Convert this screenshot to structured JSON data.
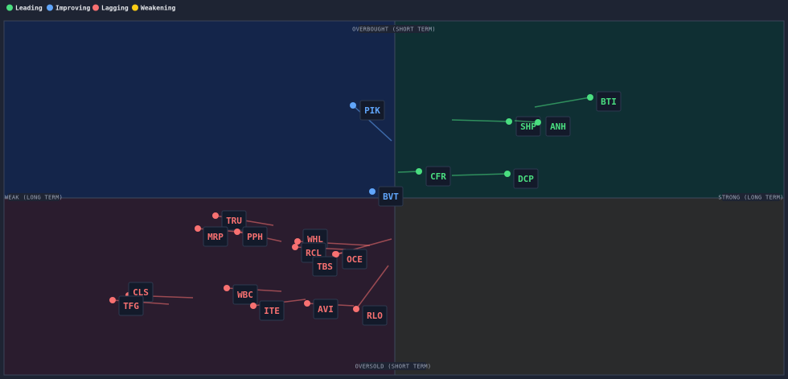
{
  "legend": [
    {
      "label": "Leading",
      "color": "#4ade80"
    },
    {
      "label": "Improving",
      "color": "#60a5fa"
    },
    {
      "label": "Lagging",
      "color": "#f87171"
    },
    {
      "label": "Weakening",
      "color": "#facc15"
    }
  ],
  "quadrant_labels": {
    "top": "OVERBOUGHT (SHORT TERM)",
    "bottom": "OVERSOLD (SHORT TERM)",
    "left": "WEAK (LONG TERM)",
    "right": "STRONG (LONG TERM)"
  },
  "tickers": [
    {
      "symbol": "PIK",
      "status": "Improving"
    },
    {
      "symbol": "BVT",
      "status": "Improving"
    },
    {
      "symbol": "BTI",
      "status": "Leading"
    },
    {
      "symbol": "SHP",
      "status": "Leading"
    },
    {
      "symbol": "ANH",
      "status": "Leading"
    },
    {
      "symbol": "CFR",
      "status": "Leading"
    },
    {
      "symbol": "DCP",
      "status": "Leading"
    },
    {
      "symbol": "TRU",
      "status": "Lagging"
    },
    {
      "symbol": "MRP",
      "status": "Lagging"
    },
    {
      "symbol": "PPH",
      "status": "Lagging"
    },
    {
      "symbol": "WHL",
      "status": "Lagging"
    },
    {
      "symbol": "RCL",
      "status": "Lagging"
    },
    {
      "symbol": "TBS",
      "status": "Lagging"
    },
    {
      "symbol": "OCE",
      "status": "Lagging"
    },
    {
      "symbol": "CLS",
      "status": "Lagging"
    },
    {
      "symbol": "TFG",
      "status": "Lagging"
    },
    {
      "symbol": "WBC",
      "status": "Lagging"
    },
    {
      "symbol": "ITE",
      "status": "Lagging"
    },
    {
      "symbol": "AVI",
      "status": "Lagging"
    },
    {
      "symbol": "RLO",
      "status": "Lagging"
    }
  ]
}
